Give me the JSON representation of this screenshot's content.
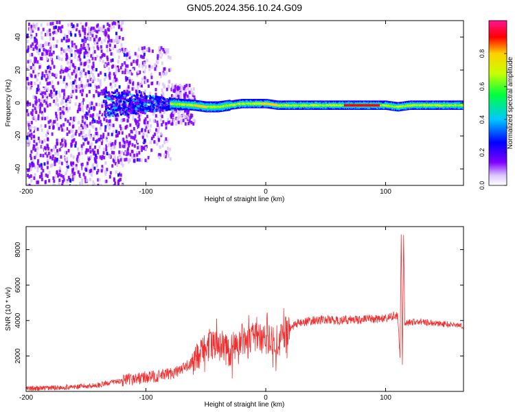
{
  "title": "GN05.2024.356.10.24.G09",
  "chart_data": [
    {
      "type": "heatmap",
      "xlabel": "Height of straight line (km)",
      "ylabel": "Frequency (Hz)",
      "xlim": [
        -200,
        165
      ],
      "ylim": [
        -50,
        50
      ],
      "x_ticks": [
        -200,
        -100,
        0,
        100
      ],
      "y_ticks": [
        -40,
        -20,
        0,
        20,
        40
      ],
      "colorbar": {
        "label": "Normalized spectral amplitude",
        "range": [
          0,
          1
        ],
        "ticks": [
          "0.0",
          "0.2",
          "0.4",
          "0.6",
          "0.8"
        ],
        "colors": [
          "#ffffff",
          "#7f00ff",
          "#0000ff",
          "#00c8ff",
          "#00ff40",
          "#c8ff00",
          "#ffd000",
          "#ff0000",
          "#ff1493"
        ]
      },
      "ridge": {
        "description_free": true,
        "x": [
          -120,
          -100,
          -80,
          -60,
          -50,
          -40,
          -30,
          -20,
          -10,
          0,
          10,
          20,
          40,
          60,
          80,
          100,
          110,
          120,
          140,
          165
        ],
        "freq": [
          0,
          0,
          0,
          -1,
          -2,
          -2,
          -1,
          0,
          0,
          0,
          -1,
          -1,
          -1,
          -1,
          -1,
          -1,
          -2,
          -1,
          -1,
          -1
        ]
      }
    },
    {
      "type": "line",
      "xlabel": "Height of straight line (km)",
      "ylabel": "SNR (10 * v/v)",
      "xlim": [
        -200,
        165
      ],
      "ylim": [
        0,
        9300
      ],
      "x_ticks": [
        -200,
        -100,
        0,
        100
      ],
      "y_ticks": [
        2000,
        4000,
        6000,
        8000
      ],
      "color": "#f03030",
      "x": [
        -200,
        -180,
        -160,
        -140,
        -130,
        -120,
        -110,
        -100,
        -90,
        -80,
        -70,
        -60,
        -55,
        -50,
        -45,
        -40,
        -35,
        -30,
        -25,
        -20,
        -15,
        -10,
        -5,
        0,
        5,
        10,
        15,
        20,
        25,
        30,
        40,
        50,
        60,
        70,
        80,
        90,
        100,
        105,
        110,
        112,
        113,
        114,
        115,
        116,
        120,
        130,
        140,
        150,
        165
      ],
      "values": [
        150,
        200,
        250,
        350,
        500,
        600,
        700,
        800,
        850,
        1000,
        1200,
        1700,
        2200,
        2700,
        2600,
        2500,
        2400,
        2200,
        2800,
        3000,
        2700,
        3100,
        2900,
        3000,
        2900,
        2600,
        3200,
        3600,
        3800,
        3900,
        4000,
        4050,
        4000,
        4050,
        4050,
        4100,
        4100,
        4200,
        4300,
        2000,
        9000,
        1500,
        8700,
        3800,
        3900,
        3950,
        3850,
        3800,
        3700
      ]
    }
  ]
}
